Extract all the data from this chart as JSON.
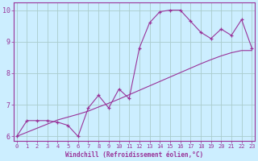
{
  "xlabel": "Windchill (Refroidissement éolien,°C)",
  "x_values": [
    0,
    1,
    2,
    3,
    4,
    5,
    6,
    7,
    8,
    9,
    10,
    11,
    12,
    13,
    14,
    15,
    16,
    17,
    18,
    19,
    20,
    21,
    22,
    23
  ],
  "line1_y": [
    6.0,
    6.5,
    6.5,
    6.5,
    6.45,
    6.35,
    6.0,
    6.9,
    7.3,
    6.9,
    7.5,
    7.2,
    8.8,
    9.6,
    9.95,
    10.0,
    10.0,
    9.65,
    9.3,
    9.1,
    9.4,
    9.2,
    9.7,
    8.8
  ],
  "line2_y": [
    6.0,
    6.13,
    6.26,
    6.39,
    6.52,
    6.61,
    6.7,
    6.8,
    6.93,
    7.05,
    7.18,
    7.32,
    7.46,
    7.6,
    7.74,
    7.88,
    8.02,
    8.16,
    8.3,
    8.43,
    8.55,
    8.65,
    8.72,
    8.72
  ],
  "line_color": "#993399",
  "bg_color": "#cceeff",
  "grid_color": "#aacccc",
  "axis_color": "#993399",
  "ylim": [
    5.85,
    10.25
  ],
  "xlim": [
    -0.3,
    23.3
  ],
  "yticks": [
    6,
    7,
    8,
    9,
    10
  ],
  "xticks": [
    0,
    1,
    2,
    3,
    4,
    5,
    6,
    7,
    8,
    9,
    10,
    11,
    12,
    13,
    14,
    15,
    16,
    17,
    18,
    19,
    20,
    21,
    22,
    23
  ]
}
